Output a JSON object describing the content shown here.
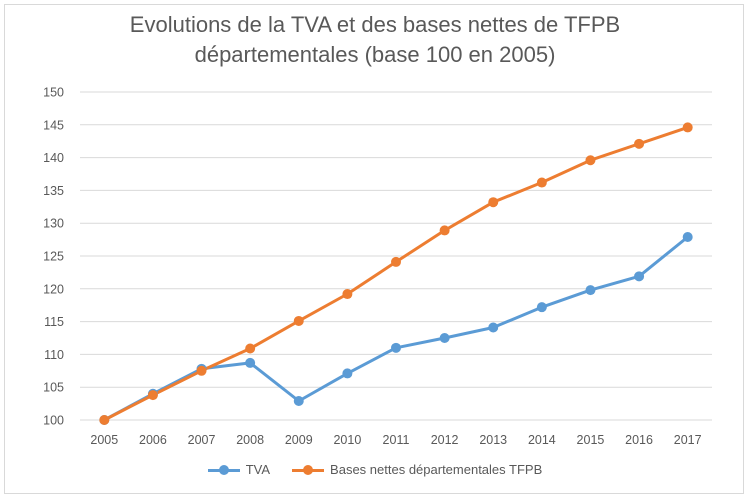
{
  "chart_data": {
    "type": "line",
    "title_line1": "Evolutions de la TVA et des bases nettes de TFPB",
    "title_line2": "départementales (base 100 en 2005)",
    "x": [
      "2005",
      "2006",
      "2007",
      "2008",
      "2009",
      "2010",
      "2011",
      "2012",
      "2013",
      "2014",
      "2015",
      "2016",
      "2017"
    ],
    "ylim": [
      100,
      150
    ],
    "yticks": [
      100,
      105,
      110,
      115,
      120,
      125,
      130,
      135,
      140,
      145,
      150
    ],
    "grid": true,
    "legend_position": "bottom",
    "series": [
      {
        "name": "TVA",
        "color": "#5b9bd5",
        "values": [
          100,
          104.0,
          107.8,
          108.7,
          102.9,
          107.1,
          111.0,
          112.5,
          114.1,
          117.2,
          119.8,
          121.9,
          127.9
        ]
      },
      {
        "name": "Bases nettes départementales TFPB",
        "color": "#ed7d31",
        "values": [
          100,
          103.8,
          107.5,
          110.9,
          115.1,
          119.2,
          124.1,
          128.9,
          133.2,
          136.2,
          139.6,
          142.1,
          144.6
        ]
      }
    ]
  }
}
